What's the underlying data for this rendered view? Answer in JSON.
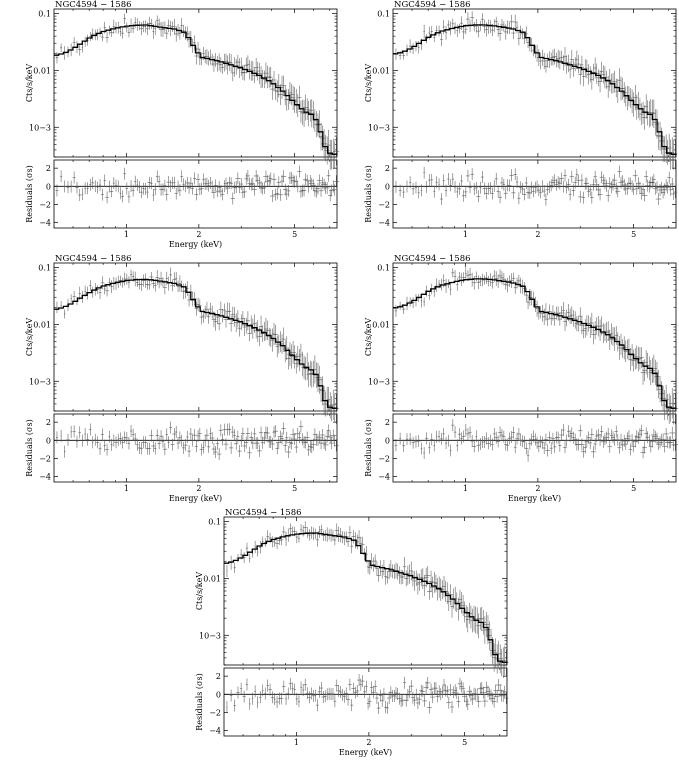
{
  "figure": {
    "background": "#ffffff",
    "ink": "#000000",
    "data_color": "#555555"
  },
  "chart_data": [
    {
      "type": "line",
      "panel": 1,
      "title": "NGC4594 − 1586",
      "xlabel": "Energy (keV)",
      "ylabel_top": "Cts/s/keV",
      "ylabel_bottom": "Residuals (σs)",
      "xscale": "log",
      "xlim": [
        0.5,
        7.5
      ],
      "xticks": [
        1,
        2,
        5
      ],
      "xtick_labels": [
        "1",
        "2",
        "5"
      ],
      "top": {
        "yscale": "log",
        "ylim": [
          0.0003,
          0.12
        ],
        "yticks": [
          0.1,
          0.01,
          0.001
        ],
        "ytick_labels": [
          "0.1",
          "0.01",
          "10−3"
        ]
      },
      "bottom": {
        "ylim": [
          -4.6,
          2.9
        ],
        "yticks": [
          2,
          0,
          -2,
          -4
        ],
        "ytick_labels": [
          "2",
          "0",
          "−2",
          "−4"
        ]
      },
      "series": [
        {
          "kind": "model",
          "x": [
            0.5,
            0.55,
            0.6,
            0.65,
            0.7,
            0.75,
            0.8,
            0.9,
            1.0,
            1.1,
            1.2,
            1.3,
            1.45,
            1.6,
            1.75,
            1.85,
            1.95,
            2.05,
            2.2,
            2.5,
            3.0,
            3.5,
            4.0,
            4.5,
            5.0,
            5.5,
            6.0,
            6.3,
            6.6,
            7.0,
            7.5
          ],
          "y": [
            0.018,
            0.02,
            0.024,
            0.03,
            0.037,
            0.043,
            0.048,
            0.055,
            0.06,
            0.062,
            0.063,
            0.06,
            0.056,
            0.053,
            0.046,
            0.033,
            0.022,
            0.017,
            0.016,
            0.014,
            0.011,
            0.0085,
            0.0062,
            0.0042,
            0.0027,
            0.0019,
            0.0016,
            0.0011,
            0.0005,
            0.00035,
            0.00033
          ]
        },
        {
          "kind": "data",
          "scatter": 0.25,
          "points": 150
        }
      ]
    },
    {
      "type": "line",
      "panel": 2,
      "title": "NGC4594 − 1586",
      "xlabel": "",
      "ylabel_top": "Cts/s/keV",
      "ylabel_bottom": "Residuals (σs)",
      "xscale": "log",
      "xlim": [
        0.5,
        7.5
      ],
      "xticks": [
        1,
        2,
        5
      ],
      "xtick_labels": [
        "1",
        "2",
        "5"
      ],
      "top": {
        "yscale": "log",
        "ylim": [
          0.0003,
          0.12
        ],
        "yticks": [
          0.1,
          0.01,
          0.001
        ],
        "ytick_labels": [
          "0.1",
          "0.01",
          "10−3"
        ]
      },
      "bottom": {
        "ylim": [
          -4.6,
          2.9
        ],
        "yticks": [
          2,
          0,
          -2,
          -4
        ],
        "ytick_labels": [
          "2",
          "0",
          "−2",
          "−4"
        ]
      },
      "series": [
        {
          "kind": "model",
          "x": [
            0.5,
            0.55,
            0.6,
            0.65,
            0.7,
            0.75,
            0.8,
            0.9,
            1.0,
            1.1,
            1.2,
            1.3,
            1.45,
            1.6,
            1.75,
            1.85,
            1.95,
            2.05,
            2.2,
            2.5,
            3.0,
            3.5,
            4.0,
            4.5,
            5.0,
            5.5,
            6.0,
            6.3,
            6.6,
            7.0,
            7.5
          ],
          "y": [
            0.019,
            0.021,
            0.025,
            0.031,
            0.038,
            0.044,
            0.049,
            0.056,
            0.061,
            0.063,
            0.063,
            0.061,
            0.057,
            0.053,
            0.046,
            0.033,
            0.022,
            0.017,
            0.016,
            0.014,
            0.011,
            0.0085,
            0.0062,
            0.0042,
            0.0027,
            0.0019,
            0.0016,
            0.0011,
            0.0005,
            0.00035,
            0.00033
          ]
        },
        {
          "kind": "data",
          "scatter": 0.25,
          "points": 150
        }
      ]
    },
    {
      "type": "line",
      "panel": 3,
      "title": "NGC4594 − 1586",
      "xlabel": "Energy (keV)",
      "ylabel_top": "Cts/s/keV",
      "ylabel_bottom": "Residuals (σs)",
      "xscale": "log",
      "xlim": [
        0.5,
        7.5
      ],
      "xticks": [
        1,
        2,
        5
      ],
      "xtick_labels": [
        "1",
        "2",
        "5"
      ],
      "top": {
        "yscale": "log",
        "ylim": [
          0.0003,
          0.12
        ],
        "yticks": [
          0.1,
          0.01,
          0.001
        ],
        "ytick_labels": [
          "0.1",
          "0.01",
          "10−3"
        ]
      },
      "bottom": {
        "ylim": [
          -4.6,
          2.9
        ],
        "yticks": [
          2,
          0,
          -2,
          -4
        ],
        "ytick_labels": [
          "2",
          "0",
          "−2",
          "−4"
        ]
      },
      "series": [
        {
          "kind": "model",
          "x": [
            0.5,
            0.55,
            0.6,
            0.65,
            0.7,
            0.75,
            0.8,
            0.9,
            1.0,
            1.1,
            1.2,
            1.3,
            1.45,
            1.6,
            1.75,
            1.85,
            1.95,
            2.05,
            2.2,
            2.5,
            3.0,
            3.5,
            4.0,
            4.5,
            5.0,
            5.5,
            6.0,
            6.3,
            6.6,
            7.0,
            7.5
          ],
          "y": [
            0.018,
            0.02,
            0.024,
            0.03,
            0.036,
            0.042,
            0.047,
            0.054,
            0.059,
            0.061,
            0.062,
            0.06,
            0.056,
            0.052,
            0.045,
            0.032,
            0.022,
            0.017,
            0.016,
            0.014,
            0.011,
            0.0083,
            0.006,
            0.0041,
            0.0026,
            0.0018,
            0.0015,
            0.0011,
            0.0005,
            0.00035,
            0.00033
          ]
        },
        {
          "kind": "data",
          "scatter": 0.25,
          "points": 150
        }
      ]
    },
    {
      "type": "line",
      "panel": 4,
      "title": "NGC4594 − 1586",
      "xlabel": "Energy (keV)",
      "ylabel_top": "Cts/s/keV",
      "ylabel_bottom": "Residuals (σs)",
      "xscale": "log",
      "xlim": [
        0.5,
        7.5
      ],
      "xticks": [
        1,
        2,
        5
      ],
      "xtick_labels": [
        "1",
        "2",
        "5"
      ],
      "top": {
        "yscale": "log",
        "ylim": [
          0.0003,
          0.12
        ],
        "yticks": [
          0.1,
          0.01,
          0.001
        ],
        "ytick_labels": [
          "0.1",
          "0.01",
          "10−3"
        ]
      },
      "bottom": {
        "ylim": [
          -4.6,
          2.9
        ],
        "yticks": [
          2,
          0,
          -2,
          -4
        ],
        "ytick_labels": [
          "2",
          "0",
          "−2",
          "−4"
        ]
      },
      "series": [
        {
          "kind": "model",
          "x": [
            0.5,
            0.55,
            0.6,
            0.65,
            0.7,
            0.75,
            0.8,
            0.9,
            1.0,
            1.1,
            1.2,
            1.3,
            1.45,
            1.6,
            1.75,
            1.85,
            1.95,
            2.05,
            2.2,
            2.5,
            3.0,
            3.5,
            4.0,
            4.5,
            5.0,
            5.5,
            6.0,
            6.3,
            6.6,
            7.0,
            7.5
          ],
          "y": [
            0.019,
            0.021,
            0.025,
            0.031,
            0.038,
            0.044,
            0.049,
            0.056,
            0.061,
            0.063,
            0.063,
            0.061,
            0.057,
            0.053,
            0.046,
            0.033,
            0.022,
            0.017,
            0.016,
            0.014,
            0.011,
            0.0085,
            0.0062,
            0.0042,
            0.0027,
            0.0019,
            0.0016,
            0.0011,
            0.0005,
            0.00035,
            0.00033
          ]
        },
        {
          "kind": "data",
          "scatter": 0.25,
          "points": 150
        }
      ]
    },
    {
      "type": "line",
      "panel": 5,
      "title": "NGC4594 − 1586",
      "xlabel": "Energy (keV)",
      "ylabel_top": "Cts/s/keV",
      "ylabel_bottom": "Residuals (σs)",
      "xscale": "log",
      "xlim": [
        0.5,
        7.5
      ],
      "xticks": [
        1,
        2,
        5
      ],
      "xtick_labels": [
        "1",
        "2",
        "5"
      ],
      "top": {
        "yscale": "log",
        "ylim": [
          0.0003,
          0.12
        ],
        "yticks": [
          0.1,
          0.01,
          0.001
        ],
        "ytick_labels": [
          "0.1",
          "0.01",
          "10−3"
        ]
      },
      "bottom": {
        "ylim": [
          -4.6,
          2.9
        ],
        "yticks": [
          2,
          0,
          -2,
          -4
        ],
        "ytick_labels": [
          "2",
          "0",
          "−2",
          "−4"
        ]
      },
      "series": [
        {
          "kind": "model",
          "x": [
            0.5,
            0.55,
            0.6,
            0.65,
            0.7,
            0.75,
            0.8,
            0.9,
            1.0,
            1.1,
            1.2,
            1.3,
            1.45,
            1.6,
            1.75,
            1.85,
            1.95,
            2.05,
            2.2,
            2.5,
            3.0,
            3.5,
            4.0,
            4.5,
            5.0,
            5.5,
            6.0,
            6.3,
            6.6,
            7.0,
            7.5
          ],
          "y": [
            0.018,
            0.02,
            0.024,
            0.03,
            0.037,
            0.043,
            0.048,
            0.055,
            0.06,
            0.062,
            0.063,
            0.06,
            0.056,
            0.053,
            0.046,
            0.033,
            0.022,
            0.017,
            0.016,
            0.014,
            0.011,
            0.0085,
            0.0062,
            0.0042,
            0.0027,
            0.0019,
            0.0016,
            0.0011,
            0.0005,
            0.00035,
            0.00033
          ]
        },
        {
          "kind": "data",
          "scatter": 0.25,
          "points": 150
        }
      ]
    }
  ]
}
